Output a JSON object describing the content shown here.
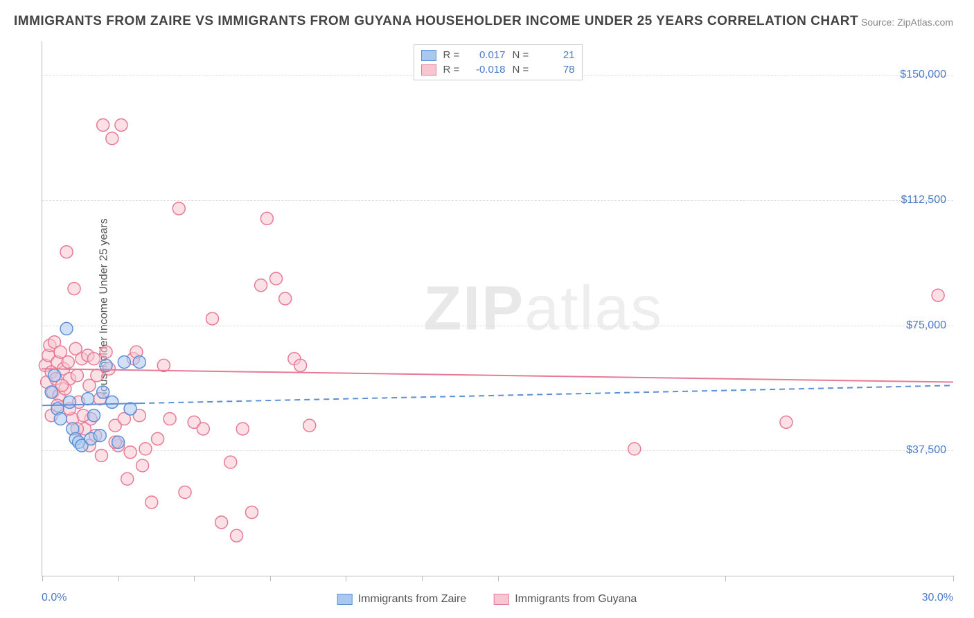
{
  "title": "IMMIGRANTS FROM ZAIRE VS IMMIGRANTS FROM GUYANA HOUSEHOLDER INCOME UNDER 25 YEARS CORRELATION CHART",
  "source": "Source: ZipAtlas.com",
  "watermark_a": "ZIP",
  "watermark_b": "atlas",
  "y_axis_title": "Householder Income Under 25 years",
  "x_min_label": "0.0%",
  "x_max_label": "30.0%",
  "series": [
    {
      "key": "zaire",
      "label": "Immigrants from Zaire",
      "fill": "#a9c8f0",
      "stroke": "#5b8fd6",
      "line_stroke": "#5b8fd6",
      "R": "0.017",
      "N": "21",
      "trend": {
        "x1": 0,
        "y1": 51000,
        "x2": 30,
        "y2": 57000,
        "solid_until_x": 3.2,
        "dashed": true
      }
    },
    {
      "key": "guyana",
      "label": "Immigrants from Guyana",
      "fill": "#f7c6d0",
      "stroke": "#e77a96",
      "line_stroke": "#e77a96",
      "R": "-0.018",
      "N": "78",
      "trend": {
        "x1": 0,
        "y1": 62000,
        "x2": 30,
        "y2": 58000,
        "dashed": false
      }
    }
  ],
  "legend_stat_labels": {
    "R": "R  =",
    "N": "N  ="
  },
  "chart": {
    "type": "scatter",
    "xlim": [
      0,
      30
    ],
    "ylim": [
      0,
      160000
    ],
    "y_ticks": [
      37500,
      75000,
      112500,
      150000
    ],
    "y_tick_labels": [
      "$37,500",
      "$75,000",
      "$112,500",
      "$150,000"
    ],
    "x_tick_positions": [
      0,
      2.5,
      5,
      7.5,
      10,
      12.5,
      15,
      22.5,
      30
    ],
    "grid_color": "#dddddd",
    "background_color": "#ffffff",
    "marker_radius": 9,
    "marker_opacity": 0.55,
    "line_width": 2
  },
  "points_zaire": [
    {
      "x": 0.3,
      "y": 55000
    },
    {
      "x": 0.4,
      "y": 60000
    },
    {
      "x": 0.5,
      "y": 50000
    },
    {
      "x": 0.6,
      "y": 47000
    },
    {
      "x": 0.8,
      "y": 74000
    },
    {
      "x": 0.9,
      "y": 52000
    },
    {
      "x": 1.0,
      "y": 44000
    },
    {
      "x": 1.1,
      "y": 41000
    },
    {
      "x": 1.2,
      "y": 40000
    },
    {
      "x": 1.3,
      "y": 39000
    },
    {
      "x": 1.5,
      "y": 53000
    },
    {
      "x": 1.6,
      "y": 41000
    },
    {
      "x": 1.7,
      "y": 48000
    },
    {
      "x": 1.9,
      "y": 42000
    },
    {
      "x": 2.0,
      "y": 55000
    },
    {
      "x": 2.1,
      "y": 63000
    },
    {
      "x": 2.3,
      "y": 52000
    },
    {
      "x": 2.5,
      "y": 40000
    },
    {
      "x": 2.7,
      "y": 64000
    },
    {
      "x": 2.9,
      "y": 50000
    },
    {
      "x": 3.2,
      "y": 64000
    }
  ],
  "points_guyana": [
    {
      "x": 0.1,
      "y": 63000
    },
    {
      "x": 0.15,
      "y": 58000
    },
    {
      "x": 0.2,
      "y": 66000
    },
    {
      "x": 0.25,
      "y": 69000
    },
    {
      "x": 0.3,
      "y": 61000
    },
    {
      "x": 0.35,
      "y": 55000
    },
    {
      "x": 0.4,
      "y": 70000
    },
    {
      "x": 0.45,
      "y": 59000
    },
    {
      "x": 0.5,
      "y": 64000
    },
    {
      "x": 0.55,
      "y": 54000
    },
    {
      "x": 0.6,
      "y": 67000
    },
    {
      "x": 0.7,
      "y": 62000
    },
    {
      "x": 0.75,
      "y": 56000
    },
    {
      "x": 0.8,
      "y": 97000
    },
    {
      "x": 0.85,
      "y": 64000
    },
    {
      "x": 0.9,
      "y": 59000
    },
    {
      "x": 1.0,
      "y": 47000
    },
    {
      "x": 1.05,
      "y": 86000
    },
    {
      "x": 1.1,
      "y": 68000
    },
    {
      "x": 1.15,
      "y": 60000
    },
    {
      "x": 1.2,
      "y": 52000
    },
    {
      "x": 1.3,
      "y": 65000
    },
    {
      "x": 1.4,
      "y": 44000
    },
    {
      "x": 1.5,
      "y": 66000
    },
    {
      "x": 1.55,
      "y": 57000
    },
    {
      "x": 1.6,
      "y": 47000
    },
    {
      "x": 1.7,
      "y": 65000
    },
    {
      "x": 1.8,
      "y": 60000
    },
    {
      "x": 1.9,
      "y": 53000
    },
    {
      "x": 2.0,
      "y": 135000
    },
    {
      "x": 2.1,
      "y": 67000
    },
    {
      "x": 2.2,
      "y": 62000
    },
    {
      "x": 2.3,
      "y": 131000
    },
    {
      "x": 2.4,
      "y": 45000
    },
    {
      "x": 2.5,
      "y": 39000
    },
    {
      "x": 2.6,
      "y": 135000
    },
    {
      "x": 2.7,
      "y": 47000
    },
    {
      "x": 2.8,
      "y": 29000
    },
    {
      "x": 3.0,
      "y": 65000
    },
    {
      "x": 3.1,
      "y": 67000
    },
    {
      "x": 3.2,
      "y": 48000
    },
    {
      "x": 3.4,
      "y": 38000
    },
    {
      "x": 3.6,
      "y": 22000
    },
    {
      "x": 3.8,
      "y": 41000
    },
    {
      "x": 4.0,
      "y": 63000
    },
    {
      "x": 4.2,
      "y": 47000
    },
    {
      "x": 4.5,
      "y": 110000
    },
    {
      "x": 4.7,
      "y": 25000
    },
    {
      "x": 5.0,
      "y": 46000
    },
    {
      "x": 5.3,
      "y": 44000
    },
    {
      "x": 5.6,
      "y": 77000
    },
    {
      "x": 5.9,
      "y": 16000
    },
    {
      "x": 6.2,
      "y": 34000
    },
    {
      "x": 6.4,
      "y": 12000
    },
    {
      "x": 6.6,
      "y": 44000
    },
    {
      "x": 6.9,
      "y": 19000
    },
    {
      "x": 7.2,
      "y": 87000
    },
    {
      "x": 7.4,
      "y": 107000
    },
    {
      "x": 7.7,
      "y": 89000
    },
    {
      "x": 8.0,
      "y": 83000
    },
    {
      "x": 8.3,
      "y": 65000
    },
    {
      "x": 8.5,
      "y": 63000
    },
    {
      "x": 8.8,
      "y": 45000
    },
    {
      "x": 19.5,
      "y": 38000
    },
    {
      "x": 24.5,
      "y": 46000
    },
    {
      "x": 29.5,
      "y": 84000
    },
    {
      "x": 0.3,
      "y": 48000
    },
    {
      "x": 0.5,
      "y": 51000
    },
    {
      "x": 0.65,
      "y": 57000
    },
    {
      "x": 0.9,
      "y": 50000
    },
    {
      "x": 1.15,
      "y": 44000
    },
    {
      "x": 1.35,
      "y": 48000
    },
    {
      "x": 1.55,
      "y": 39000
    },
    {
      "x": 1.75,
      "y": 42000
    },
    {
      "x": 1.95,
      "y": 36000
    },
    {
      "x": 2.4,
      "y": 40000
    },
    {
      "x": 2.9,
      "y": 37000
    },
    {
      "x": 3.3,
      "y": 33000
    }
  ]
}
